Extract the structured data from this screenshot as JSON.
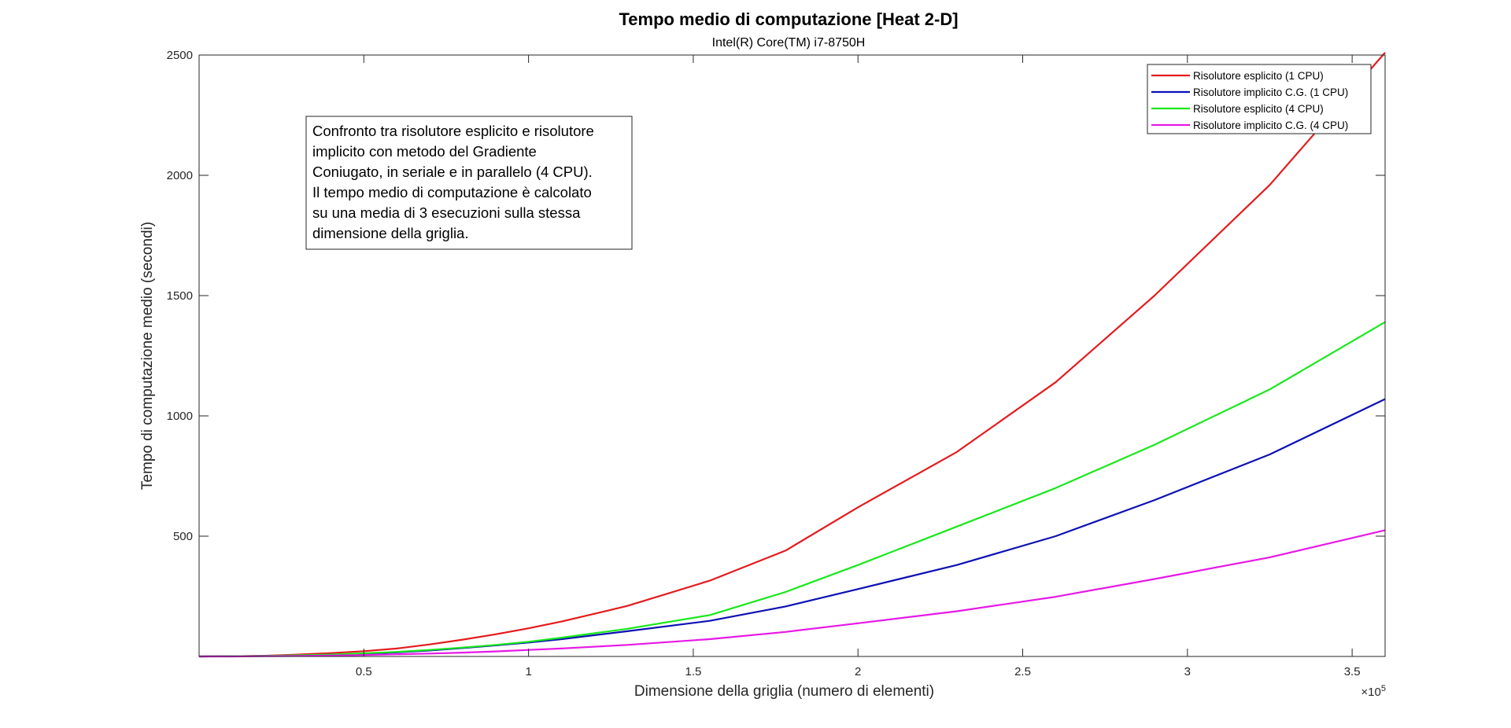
{
  "chart_data": {
    "type": "line",
    "title": "Tempo medio di computazione [Heat 2-D]",
    "subtitle": "Intel(R) Core(TM) i7-8750H",
    "xlabel": "Dimensione della griglia (numero di elementi)",
    "ylabel": "Tempo di computazione medio (secondi)",
    "x_exponent_label": "×10",
    "x_exponent_power": "5",
    "xlim": [
      0,
      360000
    ],
    "ylim": [
      0,
      2500
    ],
    "x_ticks": [
      50000,
      100000,
      150000,
      200000,
      250000,
      300000,
      350000
    ],
    "x_tick_labels": [
      "0.5",
      "1",
      "1.5",
      "2",
      "2.5",
      "3",
      "3.5"
    ],
    "y_ticks": [
      500,
      1000,
      1500,
      2000,
      2500
    ],
    "y_tick_labels": [
      "500",
      "1000",
      "1500",
      "2000",
      "2500"
    ],
    "grid": false,
    "legend_position": "top-right",
    "x": [
      0,
      10000,
      20000,
      30000,
      40000,
      50000,
      60000,
      70000,
      80000,
      90000,
      100000,
      110000,
      130000,
      155000,
      178000,
      200000,
      230000,
      260000,
      290000,
      325000,
      360000
    ],
    "series": [
      {
        "name": "Risolutore esplicito (1 CPU)",
        "color": "#e41a1c",
        "values": [
          0,
          1,
          3,
          8,
          14,
          22,
          33,
          50,
          70,
          92,
          117,
          145,
          210,
          315,
          440,
          620,
          850,
          1140,
          1500,
          1960,
          2510
        ]
      },
      {
        "name": "Risolutore implicito C.G. (1 CPU)",
        "color": "#0d11b3",
        "values": [
          0,
          1,
          2,
          4,
          7,
          11,
          17,
          25,
          35,
          46,
          58,
          72,
          105,
          148,
          208,
          280,
          380,
          500,
          650,
          840,
          1070
        ]
      },
      {
        "name": "Risolutore esplicito (4 CPU)",
        "color": "#19e81c",
        "values": [
          0,
          1,
          2,
          5,
          8,
          13,
          19,
          27,
          37,
          48,
          61,
          78,
          115,
          172,
          268,
          380,
          540,
          700,
          880,
          1110,
          1390
        ]
      },
      {
        "name": "Risolutore implicito C.G. (4 CPU)",
        "color": "#e619e6",
        "values": [
          0,
          0,
          1,
          2,
          4,
          6,
          9,
          12,
          16,
          21,
          27,
          33,
          48,
          72,
          102,
          138,
          188,
          248,
          322,
          412,
          525
        ]
      }
    ],
    "annotation": {
      "lines": [
        "Confronto tra risolutore esplicito e risolutore",
        "implicito con metodo del Gradiente",
        "Coniugato, in seriale e in parallelo (4 CPU).",
        "Il tempo medio di computazione è calcolato",
        "su una media di 3 esecuzioni sulla stessa",
        "dimensione della griglia."
      ]
    }
  }
}
